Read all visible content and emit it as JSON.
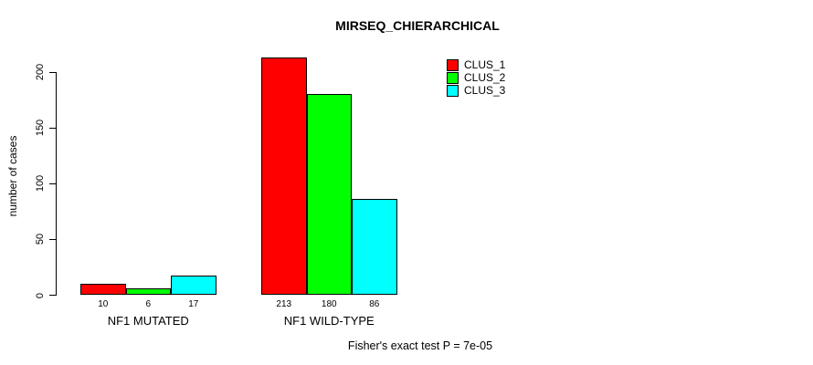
{
  "title": "MIRSEQ_CHIERARCHICAL",
  "footnote": "Fisher's exact test P = 7e-05",
  "chart_data": {
    "type": "bar",
    "title": "MIRSEQ_CHIERARCHICAL",
    "xlabel": "",
    "ylabel": "number of cases",
    "categories": [
      "NF1 MUTATED",
      "NF1 WILD-TYPE"
    ],
    "series": [
      {
        "name": "CLUS_1",
        "color": "#ff0000",
        "values": [
          10,
          213
        ]
      },
      {
        "name": "CLUS_2",
        "color": "#00ff00",
        "values": [
          6,
          180
        ]
      },
      {
        "name": "CLUS_3",
        "color": "#00ffff",
        "values": [
          17,
          86
        ]
      }
    ],
    "bar_value_labels": [
      "10",
      "6",
      "17",
      "213",
      "180",
      "86"
    ],
    "yticks": [
      0,
      50,
      100,
      150,
      200
    ],
    "ylim": [
      0,
      213
    ],
    "grid": false,
    "legend_position": "top-right",
    "legend_entries": [
      "CLUS_1",
      "CLUS_2",
      "CLUS_3"
    ],
    "annotation": "Fisher's exact test P = 7e-05"
  }
}
